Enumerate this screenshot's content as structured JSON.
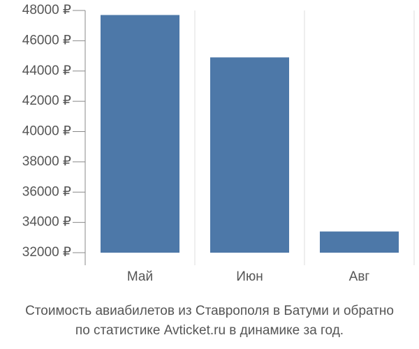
{
  "chart_data": {
    "type": "bar",
    "title": "Стоимость авиабилетов из Ставрополя в Батуми и обратно\nпо статистике Avticket.ru в динамике за год.",
    "categories": [
      "Май",
      "Июн",
      "Авг"
    ],
    "values": [
      47700,
      44900,
      33400
    ],
    "color": "#4d78a8",
    "ylim": [
      32000,
      48000
    ],
    "yticks": [
      {
        "value": 32000,
        "label": "32000 ₽"
      },
      {
        "value": 34000,
        "label": "34000 ₽"
      },
      {
        "value": 36000,
        "label": "36000 ₽"
      },
      {
        "value": 38000,
        "label": "38000 ₽"
      },
      {
        "value": 40000,
        "label": "40000 ₽"
      },
      {
        "value": 42000,
        "label": "42000 ₽"
      },
      {
        "value": 44000,
        "label": "44000 ₽"
      },
      {
        "value": 46000,
        "label": "46000 ₽"
      },
      {
        "value": 48000,
        "label": "48000 ₽"
      }
    ]
  }
}
